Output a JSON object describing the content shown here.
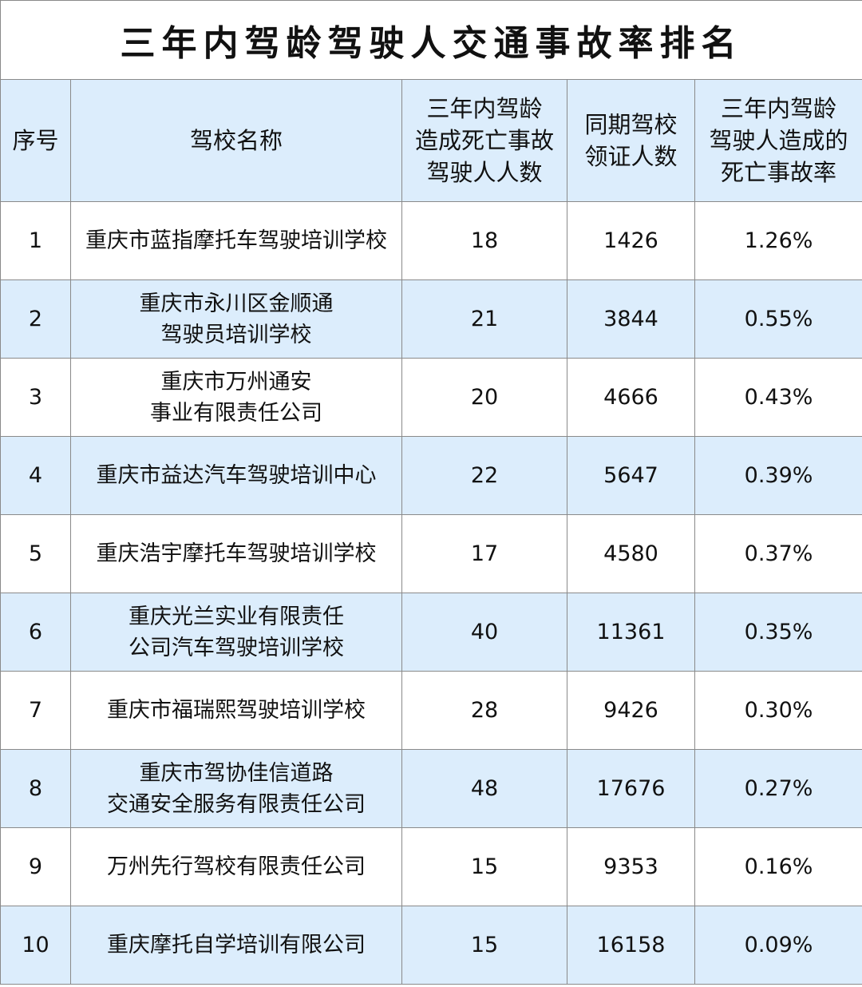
{
  "title": "三年内驾龄驾驶人交通事故率排名",
  "headers": [
    "序号",
    "驾校名称",
    "三年内驾龄\n造成死亡事故\n驾驶人人数",
    "同期驾校\n领证人数",
    "三年内驾龄\n驾驶人造成的\n死亡事故率"
  ],
  "rows": [
    {
      "rank": "1",
      "school": "重庆市蓝指摩托车驾驶培训学校",
      "deaths": "18",
      "licensed": "1426",
      "rate": "1.26%"
    },
    {
      "rank": "2",
      "school": "重庆市永川区金顺通\n驾驶员培训学校",
      "deaths": "21",
      "licensed": "3844",
      "rate": "0.55%"
    },
    {
      "rank": "3",
      "school": "重庆市万州通安\n事业有限责任公司",
      "deaths": "20",
      "licensed": "4666",
      "rate": "0.43%"
    },
    {
      "rank": "4",
      "school": "重庆市益达汽车驾驶培训中心",
      "deaths": "22",
      "licensed": "5647",
      "rate": "0.39%"
    },
    {
      "rank": "5",
      "school": "重庆浩宇摩托车驾驶培训学校",
      "deaths": "17",
      "licensed": "4580",
      "rate": "0.37%"
    },
    {
      "rank": "6",
      "school": "重庆光兰实业有限责任\n公司汽车驾驶培训学校",
      "deaths": "40",
      "licensed": "11361",
      "rate": "0.35%"
    },
    {
      "rank": "7",
      "school": "重庆市福瑞熙驾驶培训学校",
      "deaths": "28",
      "licensed": "9426",
      "rate": "0.30%"
    },
    {
      "rank": "8",
      "school": "重庆市驾协佳信道路\n交通安全服务有限责任公司",
      "deaths": "48",
      "licensed": "17676",
      "rate": "0.27%"
    },
    {
      "rank": "9",
      "school": "万州先行驾校有限责任公司",
      "deaths": "15",
      "licensed": "9353",
      "rate": "0.16%"
    },
    {
      "rank": "10",
      "school": "重庆摩托自学培训有限公司",
      "deaths": "15",
      "licensed": "16158",
      "rate": "0.09%"
    }
  ],
  "colors": {
    "header_bg": "#dcedfc",
    "alt_row_bg": "#dcedfc",
    "border": "#8a8a8a"
  }
}
